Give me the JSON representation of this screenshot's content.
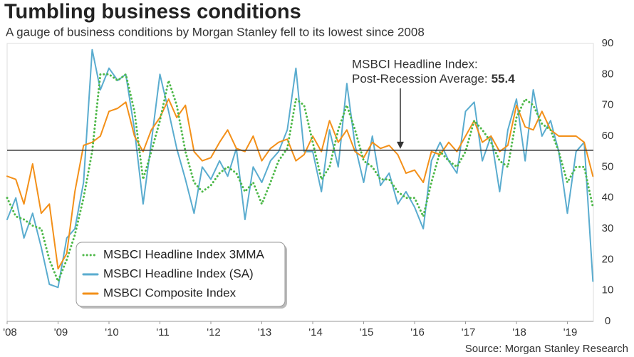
{
  "chart_data": {
    "type": "line",
    "title": "Tumbling business conditions",
    "subtitle": "A gauge of business conditions by Morgan Stanley fell to its lowest since 2008",
    "source": "Source: Morgan Stanley Research",
    "x": [
      2008,
      2008.17,
      2008.33,
      2008.5,
      2008.67,
      2008.83,
      2009,
      2009.17,
      2009.33,
      2009.5,
      2009.67,
      2009.83,
      2010,
      2010.17,
      2010.33,
      2010.5,
      2010.67,
      2010.83,
      2011,
      2011.17,
      2011.33,
      2011.5,
      2011.67,
      2011.83,
      2012,
      2012.17,
      2012.33,
      2012.5,
      2012.67,
      2012.83,
      2013,
      2013.17,
      2013.33,
      2013.5,
      2013.67,
      2013.83,
      2014,
      2014.17,
      2014.33,
      2014.5,
      2014.67,
      2014.83,
      2015,
      2015.17,
      2015.33,
      2015.5,
      2015.67,
      2015.83,
      2016,
      2016.17,
      2016.33,
      2016.5,
      2016.67,
      2016.83,
      2017,
      2017.17,
      2017.33,
      2017.5,
      2017.67,
      2017.83,
      2018,
      2018.17,
      2018.33,
      2018.5,
      2018.67,
      2018.83,
      2019,
      2019.17,
      2019.33,
      2019.5
    ],
    "series": [
      {
        "name": "MSBCI Headline Index (SA)",
        "color": "#5aaccf",
        "style": "solid",
        "values": [
          33,
          40,
          27,
          35,
          24,
          12,
          11,
          27,
          30,
          45,
          88,
          75,
          82,
          78,
          80,
          62,
          38,
          58,
          80,
          68,
          56,
          46,
          35,
          50,
          46,
          52,
          47,
          56,
          33,
          50,
          45,
          52,
          55,
          62,
          82,
          55,
          55,
          42,
          62,
          50,
          77,
          57,
          45,
          60,
          44,
          48,
          38,
          42,
          37,
          30,
          52,
          58,
          52,
          48,
          68,
          71,
          52,
          60,
          42,
          62,
          72,
          52,
          75,
          60,
          65,
          55,
          35,
          55,
          58,
          13
        ]
      },
      {
        "name": "MSBCI Composite Index",
        "color": "#f39019",
        "style": "solid",
        "values": [
          47,
          46,
          38,
          51,
          35,
          38,
          17,
          22,
          42,
          57,
          58,
          60,
          68,
          69,
          71,
          60,
          55,
          62,
          66,
          72,
          66,
          70,
          55,
          52,
          53,
          58,
          62,
          56,
          55,
          60,
          52,
          56,
          58,
          59,
          52,
          54,
          60,
          55,
          65,
          58,
          62,
          55,
          53,
          58,
          56,
          57,
          54,
          48,
          49,
          45,
          55,
          54,
          58,
          55,
          60,
          65,
          58,
          60,
          55,
          57,
          70,
          63,
          62,
          68,
          62,
          60,
          60,
          60,
          58,
          47
        ]
      },
      {
        "name": "MSBCI Headline Index 3MMA",
        "color": "#4db848",
        "style": "dotted",
        "values": [
          40,
          34,
          33,
          31,
          30,
          20,
          13,
          20,
          28,
          40,
          55,
          80,
          80,
          78,
          80,
          68,
          46,
          55,
          65,
          78,
          70,
          55,
          45,
          42,
          44,
          48,
          50,
          48,
          42,
          45,
          38,
          45,
          52,
          56,
          72,
          70,
          58,
          46,
          50,
          62,
          70,
          62,
          52,
          50,
          46,
          46,
          42,
          40,
          40,
          34,
          45,
          55,
          52,
          50,
          55,
          65,
          62,
          58,
          52,
          50,
          66,
          72,
          70,
          64,
          62,
          55,
          45,
          50,
          50,
          37
        ]
      }
    ],
    "legend_order": [
      2,
      0,
      1
    ],
    "legend": "lower left",
    "reference_line": {
      "value": 55.4,
      "label_lines": [
        "MSBCI Headline Index:",
        "Post-Recession Average:"
      ],
      "value_label": "55.4",
      "color": "#333333"
    },
    "xlim": [
      2008,
      2019.51
    ],
    "xticks": [
      {
        "value": 2008,
        "label": "'08"
      },
      {
        "value": 2009,
        "label": "'09"
      },
      {
        "value": 2010,
        "label": "'10"
      },
      {
        "value": 2011,
        "label": "'11"
      },
      {
        "value": 2012,
        "label": "'12"
      },
      {
        "value": 2013,
        "label": "'13"
      },
      {
        "value": 2014,
        "label": "'14"
      },
      {
        "value": 2015,
        "label": "'15"
      },
      {
        "value": 2016,
        "label": "'16"
      },
      {
        "value": 2017,
        "label": "'17"
      },
      {
        "value": 2018,
        "label": "'18"
      },
      {
        "value": 2019,
        "label": "'19"
      }
    ],
    "ylim": [
      0,
      90
    ],
    "yticks": [
      0,
      10,
      20,
      30,
      40,
      50,
      60,
      70,
      80,
      90
    ],
    "grid": false
  }
}
